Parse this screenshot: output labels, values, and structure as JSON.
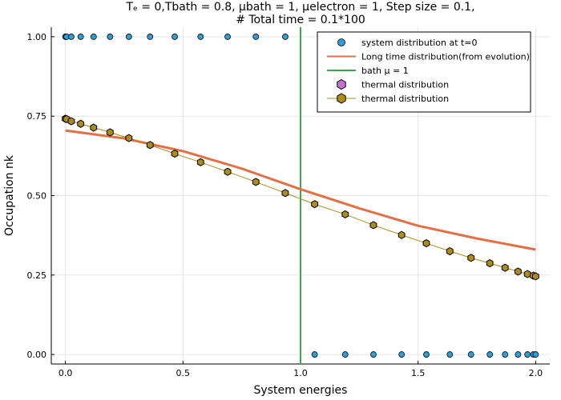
{
  "chart_data": {
    "type": "scatter",
    "title_lines": [
      "Tₑ = 0,Tbath = 0.8, μbath = 1, μelectron = 1, Step size = 0.1,",
      "#  Total time = 0.1*100"
    ],
    "xlabel": "System energies",
    "ylabel": "Occupation nk",
    "xlim": [
      -0.06,
      2.06
    ],
    "ylim": [
      -0.03,
      1.03
    ],
    "xticks": [
      0.0,
      0.5,
      1.0,
      1.5,
      2.0
    ],
    "xtick_labels": [
      "0.0",
      "0.5",
      "1.0",
      "1.5",
      "2.0"
    ],
    "yticks": [
      0.0,
      0.25,
      0.5,
      0.75,
      1.0
    ],
    "ytick_labels": [
      "0.00",
      "0.25",
      "0.50",
      "0.75",
      "1.00"
    ],
    "grid": true,
    "legend_position": "top-right",
    "energies": [
      0.0,
      0.005,
      0.025,
      0.065,
      0.12,
      0.19,
      0.27,
      0.36,
      0.465,
      0.575,
      0.69,
      0.81,
      0.935,
      1.06,
      1.19,
      1.31,
      1.43,
      1.535,
      1.635,
      1.725,
      1.805,
      1.87,
      1.925,
      1.965,
      1.99,
      2.0
    ],
    "series": [
      {
        "name": "system distribution at t=0",
        "kind": "scatter",
        "color": "#2a9fd8",
        "x": [
          0.0,
          0.005,
          0.025,
          0.065,
          0.12,
          0.19,
          0.27,
          0.36,
          0.465,
          0.575,
          0.69,
          0.81,
          0.935,
          1.06,
          1.19,
          1.31,
          1.43,
          1.535,
          1.635,
          1.725,
          1.805,
          1.87,
          1.925,
          1.965,
          1.99,
          2.0
        ],
        "y": [
          1,
          1,
          1,
          1,
          1,
          1,
          1,
          1,
          1,
          1,
          1,
          1,
          1,
          0,
          0,
          0,
          0,
          0,
          0,
          0,
          0,
          0,
          0,
          0,
          0,
          0
        ]
      },
      {
        "name": "Long time distribution(from evolution)",
        "kind": "line",
        "color": "#e26f46",
        "x": [
          0.0,
          0.25,
          0.5,
          0.75,
          1.0,
          1.25,
          1.5,
          1.75,
          2.0
        ],
        "y": [
          0.705,
          0.68,
          0.64,
          0.585,
          0.52,
          0.46,
          0.405,
          0.365,
          0.33
        ]
      },
      {
        "name": "bath μ = 1",
        "kind": "vline",
        "color": "#3ba84f",
        "x": 1.0
      },
      {
        "name": "thermal distribution",
        "kind": "scatter-hexagon",
        "color": "#c271d2"
      },
      {
        "name": "thermal distribution",
        "kind": "line-hexagon",
        "color": "#ac8d18",
        "x": [
          0.0,
          0.005,
          0.025,
          0.065,
          0.12,
          0.19,
          0.27,
          0.36,
          0.465,
          0.575,
          0.69,
          0.81,
          0.935,
          1.06,
          1.19,
          1.31,
          1.43,
          1.535,
          1.635,
          1.725,
          1.805,
          1.87,
          1.925,
          1.965,
          1.99,
          2.0
        ],
        "y": [
          0.742,
          0.741,
          0.734,
          0.726,
          0.714,
          0.699,
          0.681,
          0.659,
          0.632,
          0.605,
          0.575,
          0.543,
          0.508,
          0.473,
          0.441,
          0.407,
          0.376,
          0.35,
          0.325,
          0.304,
          0.287,
          0.273,
          0.261,
          0.253,
          0.248,
          0.246
        ]
      }
    ]
  }
}
